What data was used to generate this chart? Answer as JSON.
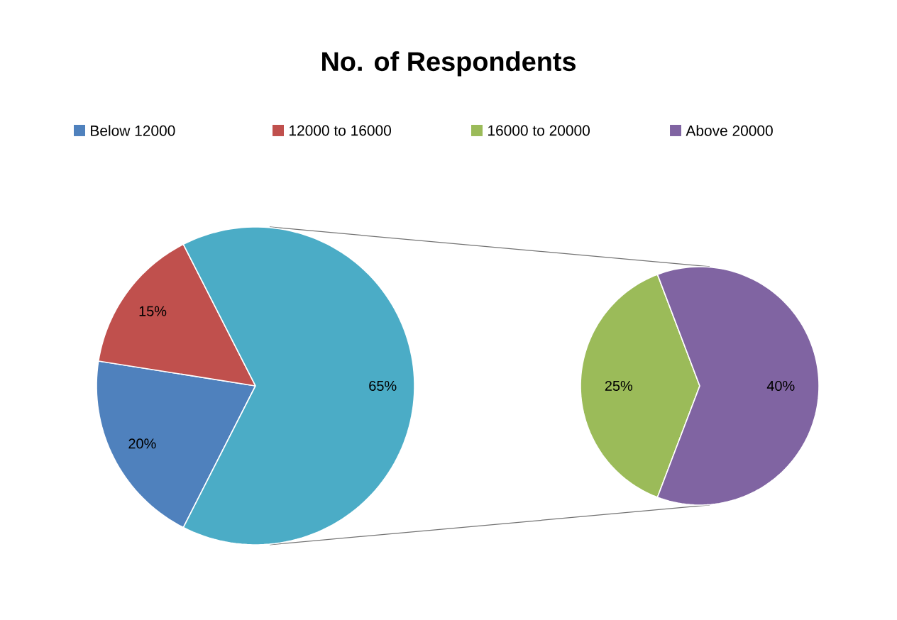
{
  "chart_data": [
    {
      "type": "pie",
      "title": "No. of Respondents",
      "categories": [
        "Below 12000",
        "12000 to 16000",
        null
      ],
      "values": [
        20,
        15,
        65
      ],
      "value_labels": [
        "20%",
        "15%",
        "65%"
      ],
      "colors": [
        "#4f81bd",
        "#c0504d",
        "#4bacc6"
      ],
      "legend": "top"
    },
    {
      "type": "pie",
      "categories": [
        "16000 to 20000",
        "Above 20000"
      ],
      "values": [
        25,
        40
      ],
      "value_labels": [
        "25%",
        "40%"
      ],
      "colors": [
        "#9bbb59",
        "#8064a2"
      ],
      "legend": "top"
    }
  ]
}
